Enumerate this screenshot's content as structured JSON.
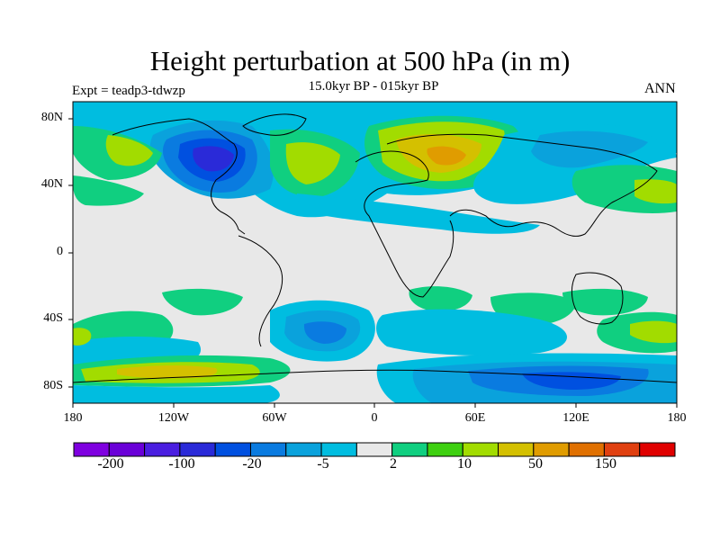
{
  "title": "Height perturbation at 500 hPa (in m)",
  "subtitle": "15.0kyr BP - 015kyr BP",
  "left_label": "Expt = teadp3-tdwzp",
  "right_label": "ANN",
  "map": {
    "projection": "cylindrical-equidistant",
    "background_color": "#e8e8e8",
    "lat_ticks": [
      "80N",
      "40N",
      "0",
      "40S",
      "80S"
    ],
    "lon_ticks": [
      "180",
      "120W",
      "60W",
      "0",
      "60E",
      "120E",
      "180"
    ]
  },
  "colorbar": {
    "colors": [
      "#7f00e0",
      "#6a00d8",
      "#4a1ee0",
      "#2a2ad8",
      "#0050e0",
      "#0a7be0",
      "#0aa2dc",
      "#00bde0",
      "#e8e8e8",
      "#10cf80",
      "#3ed010",
      "#a2dc00",
      "#d4c000",
      "#e09c00",
      "#e07000",
      "#e04010",
      "#e00000"
    ],
    "labels": [
      "-200",
      "-100",
      "-20",
      "-5",
      "2",
      "10",
      "50",
      "150"
    ]
  }
}
